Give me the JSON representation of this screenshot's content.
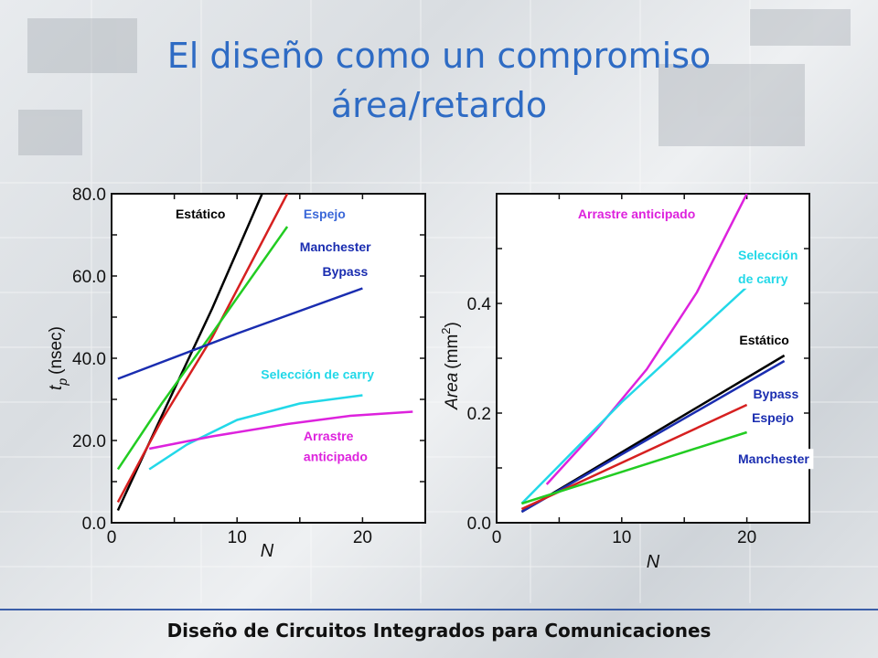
{
  "slide": {
    "title_line1": "El diseño como un compromiso",
    "title_line2": "área/retardo",
    "footer": "Diseño de Circuitos Integrados  para Comunicaciones"
  },
  "colors": {
    "title": "#2e6bc4",
    "estatico": "#000000",
    "espejo": "#d62020",
    "manchester": "#22cc22",
    "bypass": "#1a2db0",
    "seleccion": "#22d8e8",
    "arrastre": "#dd22dd"
  },
  "chart_data": [
    {
      "type": "line",
      "xlabel": "N",
      "ylabel_main": "t",
      "ylabel_sub": "p",
      "ylabel_unit": "(nsec)",
      "xlim": [
        0,
        25
      ],
      "ylim": [
        0,
        80
      ],
      "xticks": [
        "0",
        "10",
        "20"
      ],
      "xtick_values": [
        0,
        10,
        20
      ],
      "yticks": [
        "0.0",
        "20.0",
        "40.0",
        "60.0",
        "80.0"
      ],
      "ytick_values": [
        0,
        20,
        40,
        60,
        80
      ],
      "series": [
        {
          "name": "Estático",
          "color_key": "estatico",
          "x": [
            0.5,
            4,
            8,
            12
          ],
          "y": [
            3,
            26,
            52,
            80
          ]
        },
        {
          "name": "Espejo",
          "color_key": "espejo",
          "x": [
            0.5,
            4,
            8,
            14
          ],
          "y": [
            5,
            25,
            45,
            80
          ]
        },
        {
          "name": "Manchester",
          "color_key": "manchester",
          "x": [
            0.5,
            4,
            8,
            14
          ],
          "y": [
            13,
            29,
            46,
            72
          ]
        },
        {
          "name": "Bypass",
          "color_key": "bypass",
          "x": [
            0.5,
            10,
            20
          ],
          "y": [
            35,
            46,
            57
          ]
        },
        {
          "name": "Selección de carry",
          "color_key": "seleccion",
          "x": [
            3,
            6,
            10,
            15,
            20
          ],
          "y": [
            13,
            19,
            25,
            29,
            31
          ]
        },
        {
          "name": "Arrastre anticipado",
          "color_key": "arrastre",
          "x": [
            3,
            8,
            14,
            19,
            24
          ],
          "y": [
            18,
            21,
            24,
            26,
            27
          ]
        }
      ],
      "labels": [
        {
          "text": "Estático",
          "color_key": "estatico",
          "x": 5.1,
          "y": 74
        },
        {
          "text": "Espejo",
          "color_key": "espejo_label",
          "x": 15.3,
          "y": 74
        },
        {
          "text": "Manchester",
          "color_key": "bypass",
          "x": 15,
          "y": 66
        },
        {
          "text": "Bypass",
          "color_key": "bypass",
          "x": 16.8,
          "y": 60
        },
        {
          "text": "Selección de carry",
          "color_key": "seleccion",
          "x": 11.9,
          "y": 35
        },
        {
          "text": "Arrastre",
          "color_key": "arrastre",
          "x": 15.3,
          "y": 20
        },
        {
          "text": "anticipado",
          "color_key": "arrastre",
          "x": 15.3,
          "y": 15
        }
      ]
    },
    {
      "type": "line",
      "xlabel": "N",
      "ylabel_main": "Area",
      "ylabel_unit": "(mm",
      "ylabel_sup": "2",
      "ylabel_close": ")",
      "xlim": [
        0,
        25
      ],
      "ylim": [
        0,
        0.6
      ],
      "xticks": [
        "0",
        "10",
        "20"
      ],
      "xtick_values": [
        0,
        10,
        20
      ],
      "yticks": [
        "0.0",
        "0.2",
        "0.4"
      ],
      "ytick_values": [
        0,
        0.2,
        0.4
      ],
      "series": [
        {
          "name": "Arrastre anticipado",
          "color_key": "arrastre",
          "x": [
            4,
            8,
            12,
            16,
            20
          ],
          "y": [
            0.07,
            0.17,
            0.28,
            0.42,
            0.6
          ]
        },
        {
          "name": "Selección de carry",
          "color_key": "seleccion",
          "x": [
            2,
            10,
            20
          ],
          "y": [
            0.035,
            0.22,
            0.43
          ]
        },
        {
          "name": "Estático",
          "color_key": "estatico",
          "x": [
            2,
            23
          ],
          "y": [
            0.02,
            0.305
          ]
        },
        {
          "name": "Bypass",
          "color_key": "bypass",
          "x": [
            2,
            23
          ],
          "y": [
            0.02,
            0.295
          ]
        },
        {
          "name": "Espejo",
          "color_key": "espejo",
          "x": [
            2,
            20
          ],
          "y": [
            0.025,
            0.215
          ]
        },
        {
          "name": "Manchester",
          "color_key": "manchester",
          "x": [
            2,
            20
          ],
          "y": [
            0.035,
            0.165
          ]
        }
      ],
      "labels": [
        {
          "text": "Arrastre anticipado",
          "color_key": "arrastre",
          "x": 6.5,
          "y": 0.555
        },
        {
          "text": "Selección",
          "color_key": "seleccion",
          "x": 19.3,
          "y": 0.48
        },
        {
          "text": "de carry",
          "color_key": "seleccion",
          "x": 19.3,
          "y": 0.437
        },
        {
          "text": "Estático",
          "color_key": "estatico",
          "x": 19.4,
          "y": 0.325
        },
        {
          "text": "Bypass",
          "color_key": "bypass",
          "x": 20.5,
          "y": 0.227
        },
        {
          "text": "Espejo",
          "color_key": "bypass",
          "x": 20.4,
          "y": 0.183
        },
        {
          "text": "Manchester",
          "color_key": "bypass",
          "x": 19.3,
          "y": 0.108
        }
      ]
    }
  ]
}
